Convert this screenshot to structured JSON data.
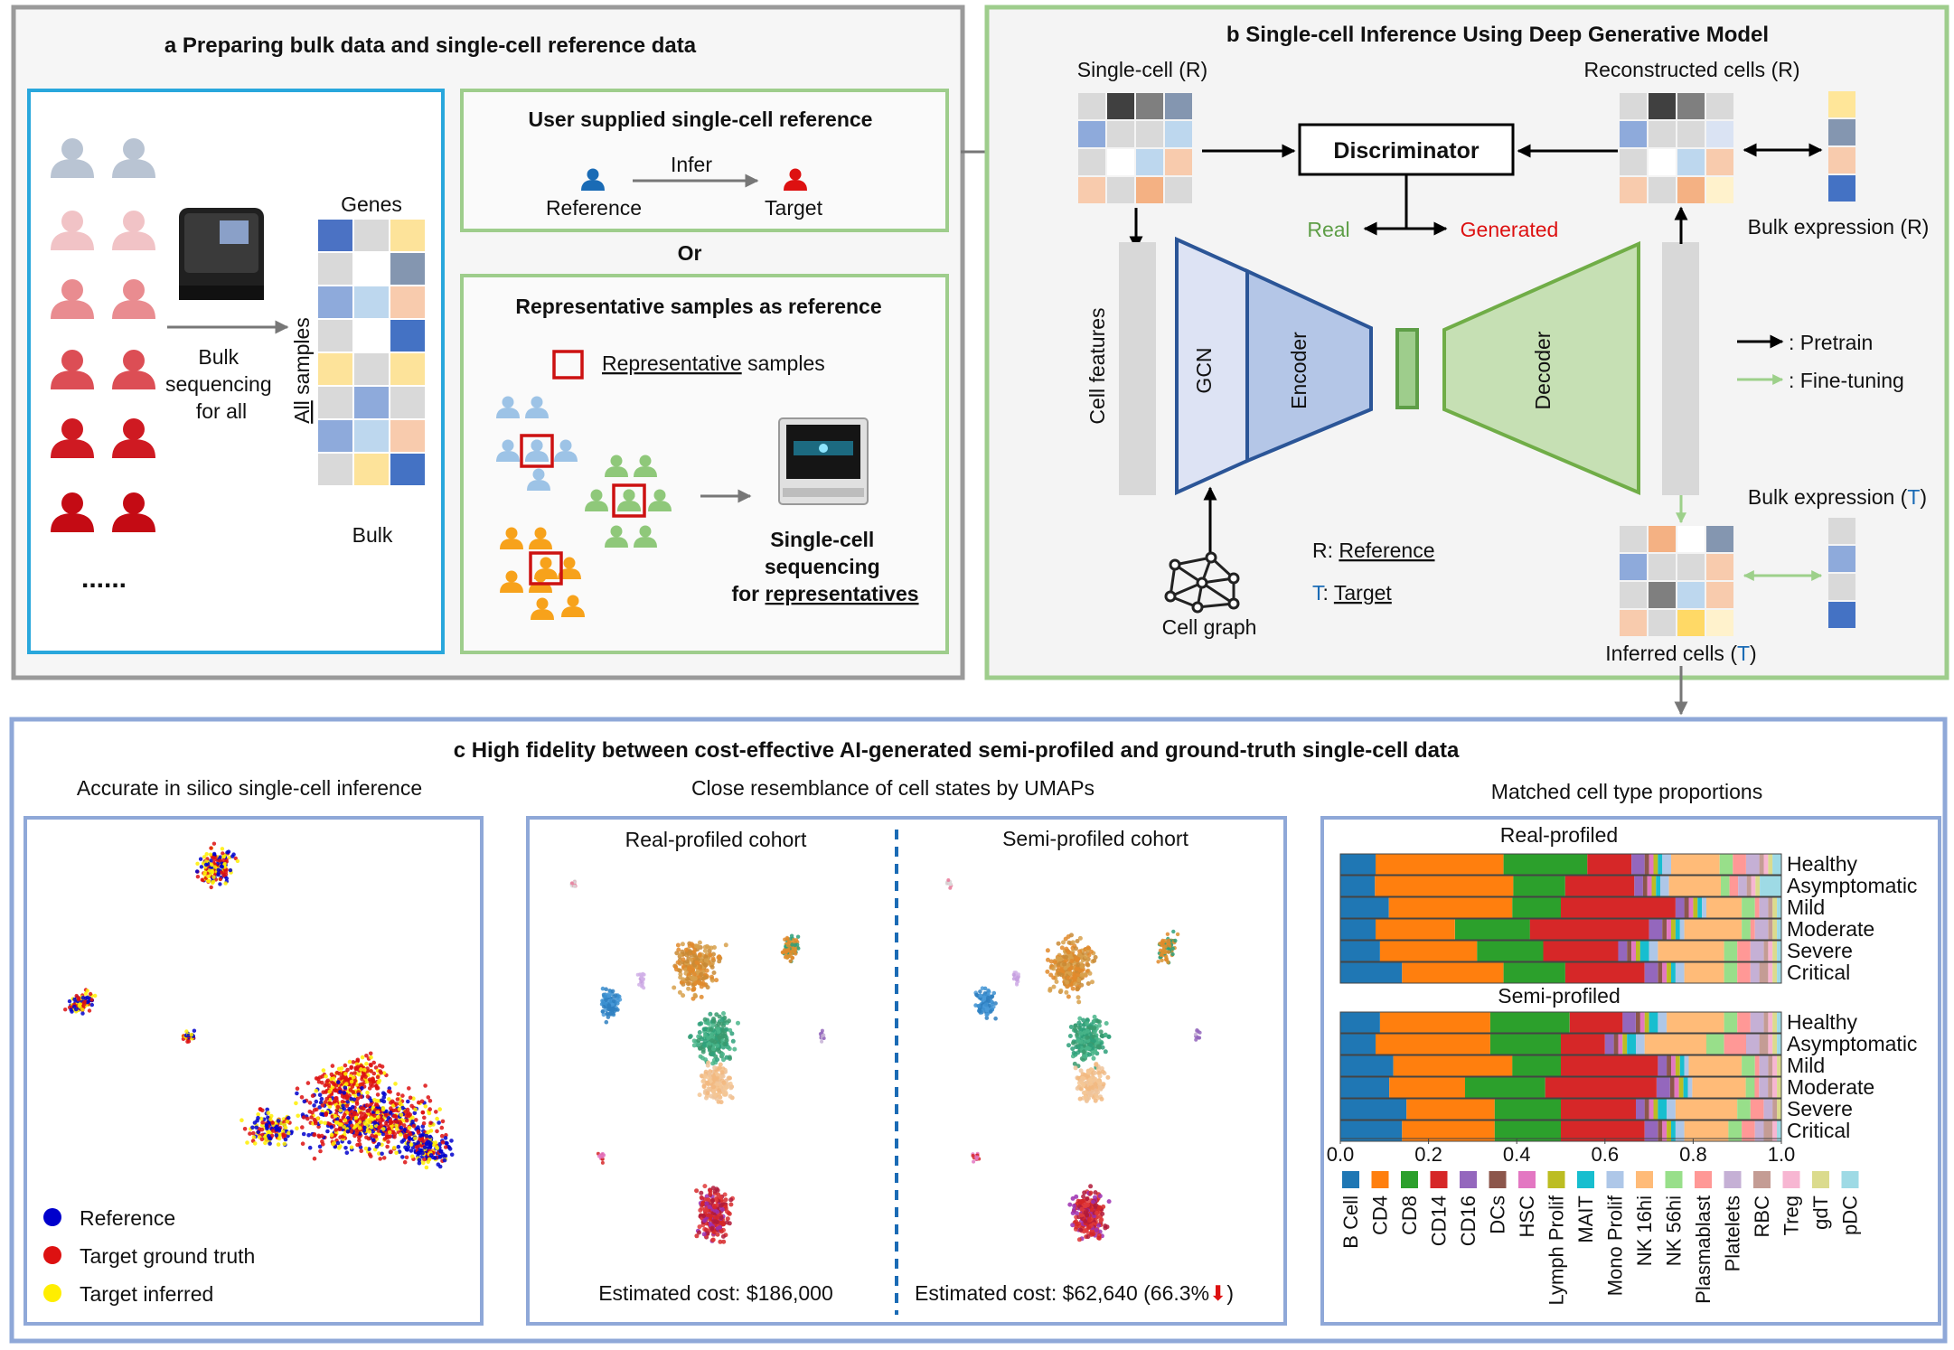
{
  "panel_a": {
    "title": "a Preparing bulk data and single-cell reference data",
    "bulk_seq": [
      "Bulk",
      "sequencing",
      "for all"
    ],
    "genes_label": "Genes",
    "all_samples_prefix": "All",
    "all_samples_suffix": " samples",
    "bulk_label": "Bulk",
    "dots": "......",
    "user_ref_title": "User supplied single-cell reference",
    "infer_label": "Infer",
    "reference_label": "Reference",
    "target_label": "Target",
    "or_label": "Or",
    "rep_title": "Representative samples as reference",
    "rep_legend_u": "Representative",
    "rep_legend_rest": " samples",
    "sc_seq": [
      "Single-cell",
      "sequencing",
      "for "
    ],
    "sc_seq_u": "representatives"
  },
  "panel_b": {
    "title": "b Single-cell Inference Using Deep Generative Model",
    "single_cell_r": "Single-cell (R)",
    "reconstructed": "Reconstructed cells (R)",
    "discriminator": "Discriminator",
    "real": "Real",
    "generated": "Generated",
    "bulk_expr_r": "Bulk expression (R)",
    "cell_features": "Cell features",
    "gcn": "GCN",
    "encoder": "Encoder",
    "decoder": "Decoder",
    "pretrain": ": Pretrain",
    "finetune": ": Fine-tuning",
    "bulk_expr_t_prefix": "Bulk expression (",
    "bulk_expr_t_letter": "T",
    "bulk_expr_t_suffix": ")",
    "r_key": "R: ",
    "r_val": "Reference",
    "t_key": "T",
    "t_sep": ": ",
    "t_val": "Target",
    "cell_graph": "Cell graph",
    "inferred_prefix": "Inferred cells (",
    "inferred_letter": "T",
    "inferred_suffix": ")"
  },
  "panel_c": {
    "title": "c High fidelity between cost-effective AI-generated semi-profiled and ground-truth single-cell data",
    "sub1": "Accurate in silico single-cell inference",
    "sub2": "Close resemblance of cell states by UMAPs",
    "sub3": "Matched cell type proportions",
    "legend": [
      "Reference",
      "Target ground truth",
      "Target inferred"
    ],
    "real_cohort": "Real-profiled cohort",
    "semi_cohort": "Semi-profiled cohort",
    "cost_real": "Estimated cost: $186,000",
    "cost_semi": "Estimated cost: $62,640 (66.3%",
    "cost_semi_end": ")",
    "colors": {
      "reference": "#0000cc",
      "truth": "#dd1111",
      "inferred": "#ffee00"
    }
  },
  "chart_data": {
    "type": "bar",
    "orientation": "horizontal-stacked",
    "groups": [
      "Real-profiled",
      "Semi-profiled"
    ],
    "categories": [
      "Healthy",
      "Asymptomatic",
      "Mild",
      "Moderate",
      "Severe",
      "Critical"
    ],
    "cell_types": [
      "B Cell",
      "CD4",
      "CD8",
      "CD14",
      "CD16",
      "DCs",
      "HSC",
      "Lymph Prolif",
      "MAIT",
      "Mono Prolif",
      "NK 16hi",
      "NK 56hi",
      "Plasmablast",
      "Platelets",
      "RBC",
      "Treg",
      "gdT",
      "pDC"
    ],
    "colors": [
      "#1f77b4",
      "#ff7f0e",
      "#2ca02c",
      "#d62728",
      "#9467bd",
      "#8c564b",
      "#e377c2",
      "#bcbd22",
      "#17becf",
      "#aec7e8",
      "#ffbb78",
      "#98df8a",
      "#ff9896",
      "#c5b0d5",
      "#c49c94",
      "#f7b6d2",
      "#dbdb8d",
      "#9edae5"
    ],
    "xlim": [
      0,
      1
    ],
    "xticks": [
      "0.0",
      "0.2",
      "0.4",
      "0.6",
      "0.8",
      "1.0"
    ],
    "series": [
      {
        "name": "Real-profiled",
        "rows": [
          [
            0.08,
            0.29,
            0.19,
            0.1,
            0.03,
            0.01,
            0.01,
            0.01,
            0.01,
            0.02,
            0.11,
            0.03,
            0.03,
            0.03,
            0.01,
            0.01,
            0.01,
            0.02
          ],
          [
            0.08,
            0.32,
            0.12,
            0.16,
            0.02,
            0.01,
            0.01,
            0.01,
            0.01,
            0.02,
            0.12,
            0.02,
            0.02,
            0.02,
            0.01,
            0.01,
            0.01,
            0.05
          ],
          [
            0.11,
            0.28,
            0.11,
            0.26,
            0.02,
            0.01,
            0.01,
            0.01,
            0.01,
            0.01,
            0.08,
            0.03,
            0.01,
            0.02,
            0.01,
            0.0,
            0.01,
            0.01
          ],
          [
            0.08,
            0.18,
            0.17,
            0.27,
            0.03,
            0.01,
            0.01,
            0.01,
            0.01,
            0.01,
            0.13,
            0.02,
            0.01,
            0.03,
            0.01,
            0.0,
            0.01,
            0.01
          ],
          [
            0.09,
            0.22,
            0.15,
            0.17,
            0.02,
            0.01,
            0.01,
            0.01,
            0.02,
            0.02,
            0.15,
            0.03,
            0.03,
            0.03,
            0.01,
            0.01,
            0.01,
            0.01
          ],
          [
            0.14,
            0.23,
            0.14,
            0.18,
            0.03,
            0.01,
            0.01,
            0.01,
            0.01,
            0.02,
            0.09,
            0.03,
            0.03,
            0.02,
            0.02,
            0.01,
            0.01,
            0.01
          ]
        ]
      },
      {
        "name": "Semi-profiled",
        "rows": [
          [
            0.09,
            0.25,
            0.18,
            0.12,
            0.03,
            0.01,
            0.01,
            0.01,
            0.02,
            0.02,
            0.13,
            0.03,
            0.03,
            0.03,
            0.01,
            0.01,
            0.01,
            0.01
          ],
          [
            0.08,
            0.26,
            0.16,
            0.1,
            0.02,
            0.01,
            0.01,
            0.01,
            0.02,
            0.02,
            0.14,
            0.04,
            0.05,
            0.03,
            0.02,
            0.01,
            0.01,
            0.01
          ],
          [
            0.12,
            0.27,
            0.11,
            0.22,
            0.02,
            0.01,
            0.01,
            0.01,
            0.01,
            0.01,
            0.12,
            0.03,
            0.01,
            0.02,
            0.01,
            0.01,
            0.01,
            0.0
          ],
          [
            0.11,
            0.17,
            0.18,
            0.25,
            0.03,
            0.01,
            0.01,
            0.01,
            0.01,
            0.01,
            0.12,
            0.02,
            0.01,
            0.02,
            0.01,
            0.01,
            0.01,
            0.0
          ],
          [
            0.15,
            0.2,
            0.15,
            0.17,
            0.02,
            0.01,
            0.01,
            0.01,
            0.02,
            0.02,
            0.14,
            0.03,
            0.03,
            0.02,
            0.01,
            0.0,
            0.01,
            0.0
          ],
          [
            0.14,
            0.21,
            0.15,
            0.19,
            0.03,
            0.01,
            0.01,
            0.01,
            0.01,
            0.02,
            0.1,
            0.03,
            0.03,
            0.02,
            0.02,
            0.01,
            0.0,
            0.01
          ]
        ]
      }
    ]
  }
}
